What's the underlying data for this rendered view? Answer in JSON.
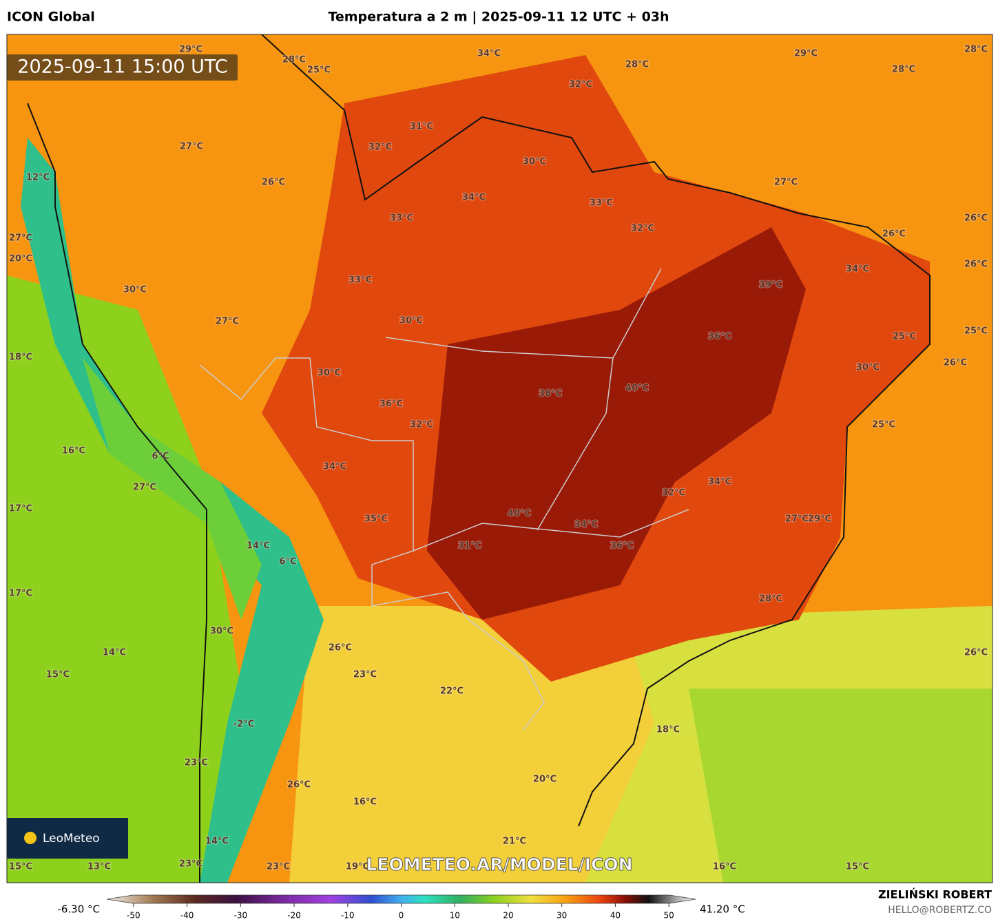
{
  "header": {
    "left": "ICON Global",
    "title": "Temperatura a 2 m | 2025-09-11 12 UTC + 03h"
  },
  "timestamp": "2025-09-11 15:00 UTC",
  "watermark": "LEOMETEO.AR/MODEL/ICON",
  "logo": "LeoMeteo",
  "map_labels": [
    "29°C",
    "28°C",
    "25°C",
    "34°C",
    "28°C",
    "29°C",
    "28°C",
    "28°C",
    "32°C",
    "31°C",
    "32°C",
    "27°C",
    "30°C",
    "12°C",
    "26°C",
    "27°C",
    "34°C",
    "33°C",
    "33°C",
    "32°C",
    "26°C",
    "26°C",
    "27°C",
    "20°C",
    "26°C",
    "34°C",
    "33°C",
    "39°C",
    "30°C",
    "27°C",
    "30°C",
    "25°C",
    "36°C",
    "25°C",
    "18°C",
    "26°C",
    "30°C",
    "30°C",
    "38°C",
    "40°C",
    "36°C",
    "32°C",
    "25°C",
    "16°C",
    "6°C",
    "34°C",
    "34°C",
    "27°C",
    "32°C",
    "17°C",
    "40°C",
    "35°C",
    "27°C",
    "29°C",
    "34°C",
    "14°C",
    "31°C",
    "36°C",
    "6°C",
    "17°C",
    "28°C",
    "30°C",
    "26°C",
    "14°C",
    "26°C",
    "15°C",
    "23°C",
    "22°C",
    "-2°C",
    "18°C",
    "23°C",
    "20°C",
    "26°C",
    "16°C",
    "21°C",
    "14°C",
    "15°C",
    "13°C",
    "23°C",
    "23°C",
    "19°C",
    "16°C",
    "15°C"
  ],
  "colorbar": {
    "range": [
      -55,
      55
    ],
    "ticks": [
      -50,
      -40,
      -30,
      -20,
      -10,
      0,
      10,
      20,
      30,
      40,
      50
    ],
    "min_label": "-6.30 °C",
    "max_label": "41.20 °C"
  },
  "credits": {
    "name": "ZIELIŃSKI ROBERT",
    "email": "HELLO@ROBERTZ.CO"
  }
}
